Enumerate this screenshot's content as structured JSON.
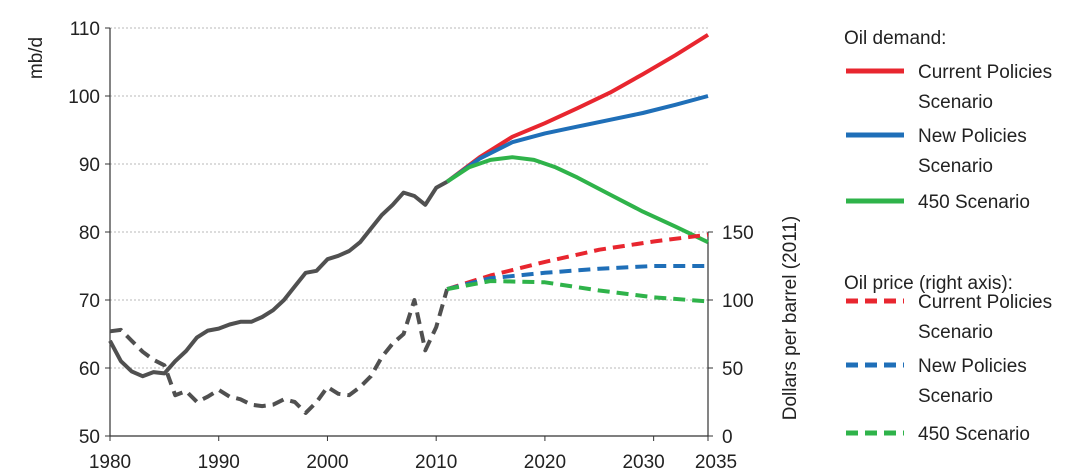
{
  "chart_data": {
    "type": "line",
    "title": "",
    "xlabel": "",
    "ylabel": "mb/d",
    "y2label": "Dollars per barrel (2011)",
    "xlim": [
      1980,
      2035
    ],
    "ylim": [
      50,
      110
    ],
    "y2lim": [
      0,
      150
    ],
    "grid": true,
    "legend_position": "right",
    "x_ticks": [
      1980,
      1990,
      2000,
      2010,
      2020,
      2030,
      2035
    ],
    "y_ticks": [
      50,
      60,
      70,
      80,
      90,
      100,
      110
    ],
    "y2_ticks": [
      0,
      50,
      100,
      150
    ],
    "legend_groups": [
      {
        "title": "Oil demand:",
        "items": [
          {
            "line1": "Current Policies",
            "line2": "Scenario",
            "color": "#e8262f",
            "dash": false
          },
          {
            "line1": "New Policies",
            "line2": "Scenario",
            "color": "#1f6fb8",
            "dash": false
          },
          {
            "line1": "450 Scenario",
            "line2": "",
            "color": "#2fb34a",
            "dash": false
          }
        ]
      },
      {
        "title": "Oil price (right axis):",
        "items": [
          {
            "line1": "Current Policies",
            "line2": "Scenario",
            "color": "#e8262f",
            "dash": true
          },
          {
            "line1": "New Policies",
            "line2": "Scenario",
            "color": "#1f6fb8",
            "dash": true
          },
          {
            "line1": "450 Scenario",
            "line2": "",
            "color": "#2fb34a",
            "dash": true
          }
        ]
      }
    ],
    "series": [
      {
        "name": "Oil demand - historical",
        "axis": "left",
        "color": "#505050",
        "dash": false,
        "points": [
          [
            1980,
            64.0
          ],
          [
            1981,
            61.0
          ],
          [
            1982,
            59.5
          ],
          [
            1983,
            58.8
          ],
          [
            1984,
            59.4
          ],
          [
            1985,
            59.2
          ],
          [
            1986,
            61.0
          ],
          [
            1987,
            62.5
          ],
          [
            1988,
            64.5
          ],
          [
            1989,
            65.5
          ],
          [
            1990,
            65.8
          ],
          [
            1991,
            66.4
          ],
          [
            1992,
            66.8
          ],
          [
            1993,
            66.8
          ],
          [
            1994,
            67.5
          ],
          [
            1995,
            68.5
          ],
          [
            1996,
            70.0
          ],
          [
            1997,
            72.0
          ],
          [
            1998,
            74.0
          ],
          [
            1999,
            74.3
          ],
          [
            2000,
            76.0
          ],
          [
            2001,
            76.5
          ],
          [
            2002,
            77.2
          ],
          [
            2003,
            78.5
          ],
          [
            2004,
            80.5
          ],
          [
            2005,
            82.5
          ],
          [
            2006,
            84.0
          ],
          [
            2007,
            85.8
          ],
          [
            2008,
            85.3
          ],
          [
            2009,
            84.0
          ],
          [
            2010,
            86.5
          ],
          [
            2011,
            87.4
          ]
        ]
      },
      {
        "name": "Oil demand - Current Policies Scenario",
        "axis": "left",
        "color": "#e8262f",
        "dash": false,
        "points": [
          [
            2011,
            87.4
          ],
          [
            2014,
            91.0
          ],
          [
            2017,
            94.0
          ],
          [
            2020,
            96.0
          ],
          [
            2023,
            98.2
          ],
          [
            2026,
            100.5
          ],
          [
            2029,
            103.2
          ],
          [
            2032,
            106.0
          ],
          [
            2035,
            109.0
          ]
        ]
      },
      {
        "name": "Oil demand - New Policies Scenario",
        "axis": "left",
        "color": "#1f6fb8",
        "dash": false,
        "points": [
          [
            2011,
            87.4
          ],
          [
            2014,
            90.8
          ],
          [
            2017,
            93.2
          ],
          [
            2020,
            94.5
          ],
          [
            2023,
            95.5
          ],
          [
            2026,
            96.5
          ],
          [
            2029,
            97.5
          ],
          [
            2032,
            98.7
          ],
          [
            2035,
            100.0
          ]
        ]
      },
      {
        "name": "Oil demand - 450 Scenario",
        "axis": "left",
        "color": "#2fb34a",
        "dash": false,
        "points": [
          [
            2011,
            87.4
          ],
          [
            2013,
            89.5
          ],
          [
            2015,
            90.6
          ],
          [
            2017,
            91.0
          ],
          [
            2019,
            90.6
          ],
          [
            2021,
            89.5
          ],
          [
            2023,
            88.0
          ],
          [
            2026,
            85.5
          ],
          [
            2029,
            83.0
          ],
          [
            2032,
            80.8
          ],
          [
            2035,
            78.5
          ]
        ]
      },
      {
        "name": "Oil price - historical",
        "axis": "right",
        "color": "#505050",
        "dash": true,
        "points": [
          [
            1980,
            77
          ],
          [
            1981,
            78
          ],
          [
            1982,
            70
          ],
          [
            1983,
            62
          ],
          [
            1984,
            56
          ],
          [
            1985,
            52
          ],
          [
            1986,
            30
          ],
          [
            1987,
            33
          ],
          [
            1988,
            25
          ],
          [
            1989,
            29
          ],
          [
            1990,
            34
          ],
          [
            1991,
            29
          ],
          [
            1992,
            27
          ],
          [
            1993,
            23
          ],
          [
            1994,
            22
          ],
          [
            1995,
            23
          ],
          [
            1996,
            27
          ],
          [
            1997,
            25
          ],
          [
            1998,
            17
          ],
          [
            1999,
            25
          ],
          [
            2000,
            36
          ],
          [
            2001,
            31
          ],
          [
            2002,
            30
          ],
          [
            2003,
            36
          ],
          [
            2004,
            44
          ],
          [
            2005,
            58
          ],
          [
            2006,
            68
          ],
          [
            2007,
            75
          ],
          [
            2008,
            100
          ],
          [
            2009,
            63
          ],
          [
            2010,
            80
          ],
          [
            2011,
            108
          ]
        ]
      },
      {
        "name": "Oil price - Current Policies Scenario",
        "axis": "right",
        "color": "#e8262f",
        "dash": true,
        "points": [
          [
            2011,
            108
          ],
          [
            2015,
            118
          ],
          [
            2020,
            128
          ],
          [
            2025,
            137
          ],
          [
            2030,
            143
          ],
          [
            2035,
            148
          ]
        ]
      },
      {
        "name": "Oil price - New Policies Scenario",
        "axis": "right",
        "color": "#1f6fb8",
        "dash": true,
        "points": [
          [
            2011,
            108
          ],
          [
            2015,
            116
          ],
          [
            2020,
            120
          ],
          [
            2025,
            123
          ],
          [
            2030,
            125
          ],
          [
            2035,
            125
          ]
        ]
      },
      {
        "name": "Oil price - 450 Scenario",
        "axis": "right",
        "color": "#2fb34a",
        "dash": true,
        "points": [
          [
            2011,
            108
          ],
          [
            2015,
            114
          ],
          [
            2020,
            113
          ],
          [
            2025,
            107
          ],
          [
            2030,
            102
          ],
          [
            2035,
            99
          ]
        ]
      }
    ]
  }
}
